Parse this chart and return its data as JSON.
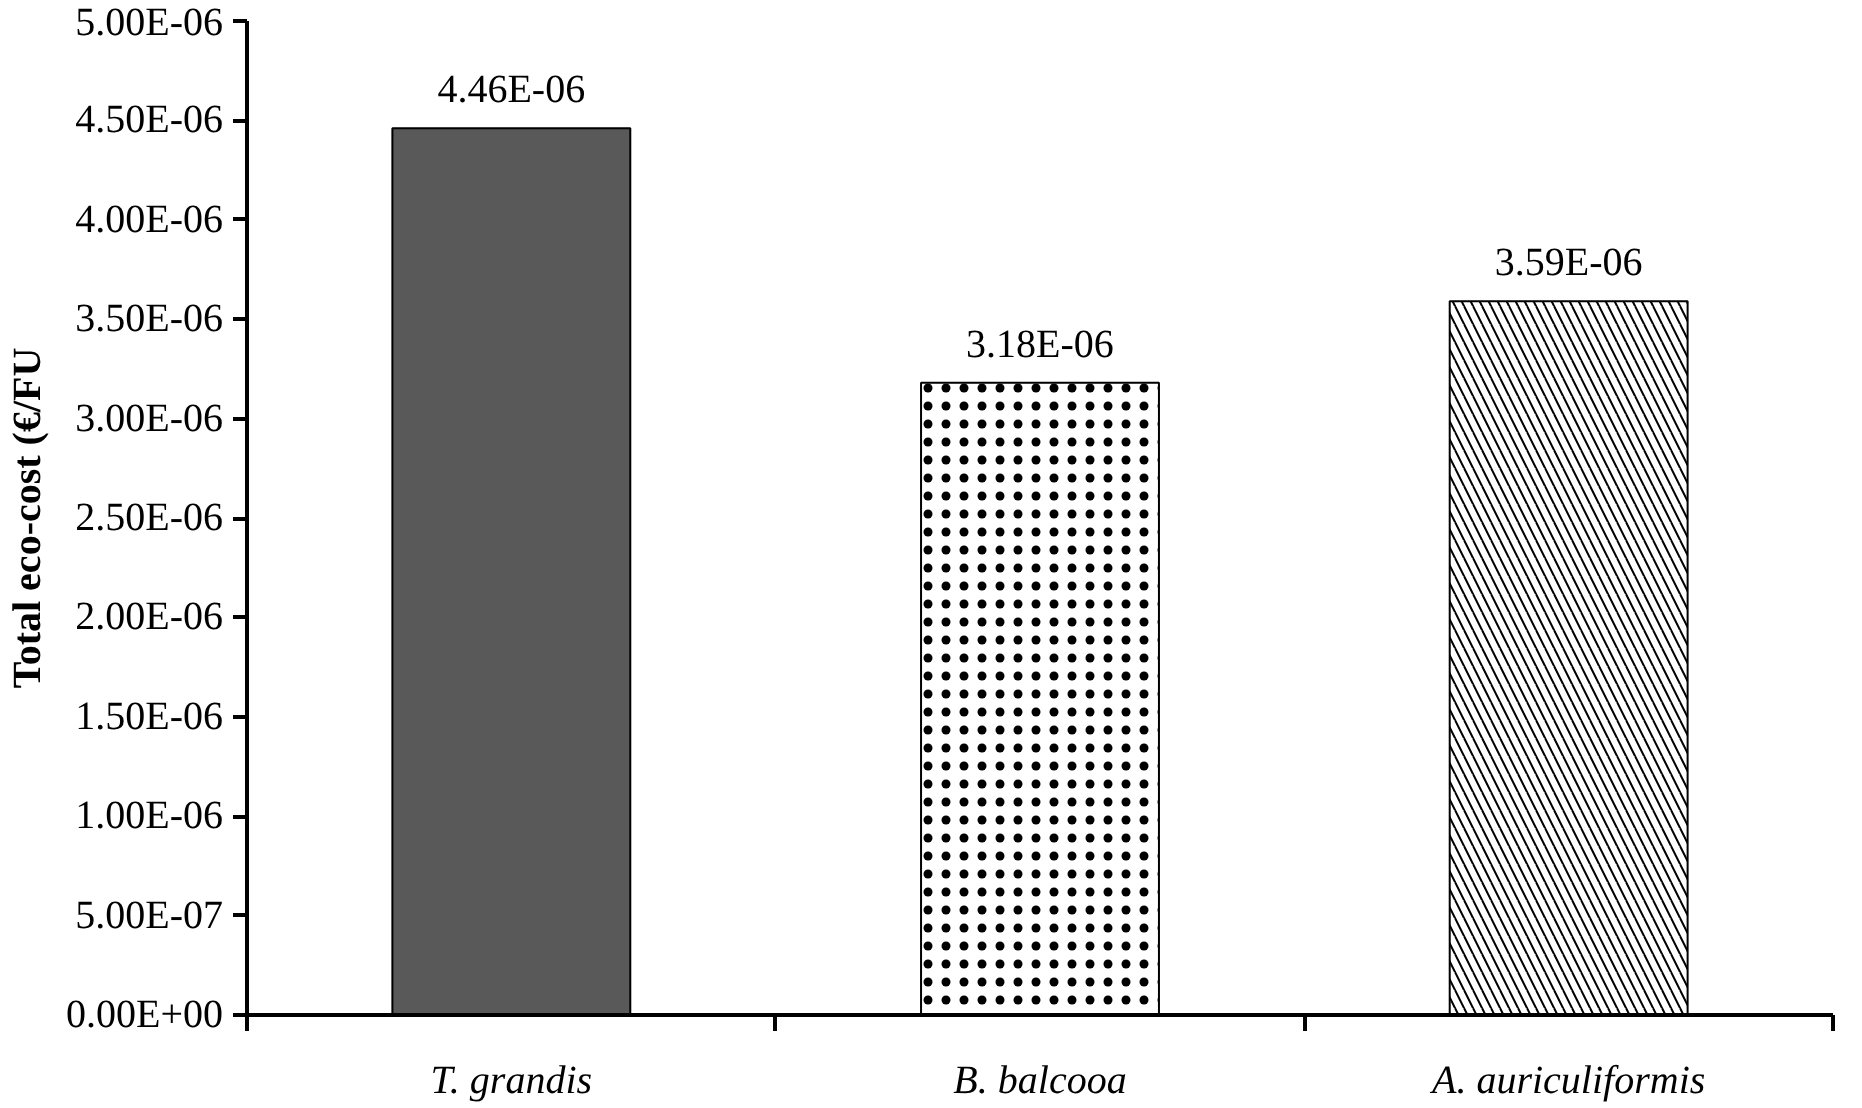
{
  "chart_data": {
    "type": "bar",
    "ylabel": "Total eco-cost (€/FU",
    "categories": [
      "T. grandis",
      "B. balcooa",
      "A. auriculiformis"
    ],
    "values": [
      4.46e-06,
      3.18e-06,
      3.59e-06
    ],
    "value_labels": [
      "4.46E-06",
      "3.18E-06",
      "3.59E-06"
    ],
    "colors": [
      "#595959",
      "#ffffff",
      "#ffffff"
    ],
    "ylim": [
      0,
      5e-06
    ],
    "yticks": [
      {
        "value": 0,
        "label": "0.00E+00"
      },
      {
        "value": 5e-07,
        "label": "5.00E-07"
      },
      {
        "value": 1e-06,
        "label": "1.00E-06"
      },
      {
        "value": 1.5e-06,
        "label": "1.50E-06"
      },
      {
        "value": 2e-06,
        "label": "2.00E-06"
      },
      {
        "value": 2.5e-06,
        "label": "2.50E-06"
      },
      {
        "value": 3e-06,
        "label": "3.00E-06"
      },
      {
        "value": 3.5e-06,
        "label": "3.50E-06"
      },
      {
        "value": 4e-06,
        "label": "4.00E-06"
      },
      {
        "value": 4.5e-06,
        "label": "4.50E-06"
      },
      {
        "value": 5e-06,
        "label": "5.00E-06"
      }
    ],
    "grid": false
  }
}
